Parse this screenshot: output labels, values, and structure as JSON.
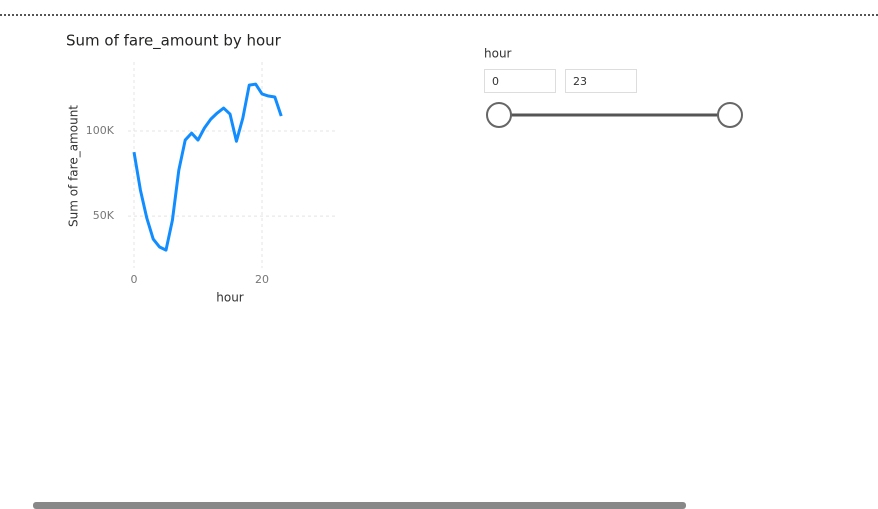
{
  "chart_data": {
    "type": "line",
    "title": "Sum of fare_amount by hour",
    "x_label": "hour",
    "y_label": "Sum of fare_amount",
    "x": [
      0,
      1,
      2,
      3,
      4,
      5,
      6,
      7,
      8,
      9,
      10,
      11,
      12,
      13,
      14,
      15,
      16,
      17,
      18,
      19,
      20,
      21,
      22,
      23
    ],
    "series": [
      {
        "name": "Sum of fare_amount",
        "color": "#118dff",
        "values": [
          87600,
          65300,
          48800,
          36500,
          31800,
          30000,
          47600,
          77000,
          94700,
          98800,
          94700,
          101800,
          107000,
          110600,
          113500,
          110000,
          94000,
          107600,
          127000,
          127600,
          121800,
          120600,
          120000,
          108800
        ]
      }
    ],
    "xlim": [
      -3.75,
      31.4
    ],
    "ylim": [
      23000,
      140600
    ],
    "xticks": [
      0,
      20
    ],
    "yticks": [
      {
        "value": 50000,
        "label": "50K"
      },
      {
        "value": 100000,
        "label": "100K"
      }
    ],
    "grid": true
  },
  "slicer": {
    "title": "hour",
    "start": 0,
    "end": 23
  }
}
